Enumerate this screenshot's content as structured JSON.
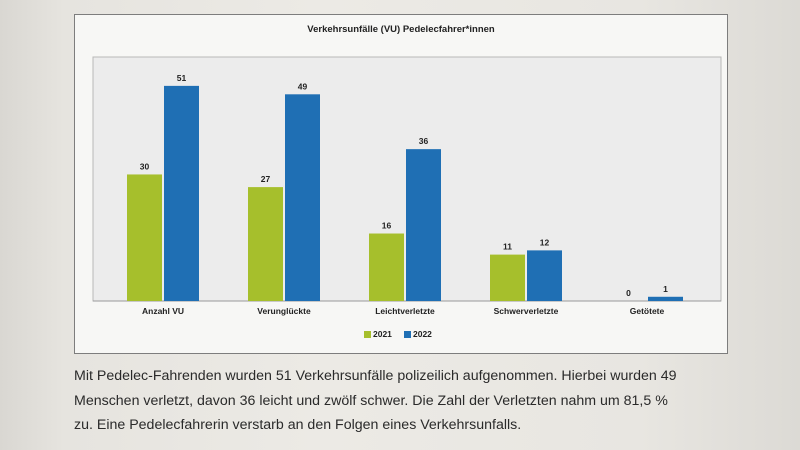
{
  "chart_data": {
    "type": "bar",
    "title": "Verkehrsunfälle (VU) Pedelecfahrer*innen",
    "xlabel": "",
    "ylabel": "",
    "categories": [
      "Anzahl VU",
      "Verunglückte",
      "Leichtverletzte",
      "Schwerverletzte",
      "Getötete"
    ],
    "series": [
      {
        "name": "2021",
        "color": "#a6bf2c",
        "values": [
          30,
          27,
          16,
          11,
          0
        ]
      },
      {
        "name": "2022",
        "color": "#1f6fb4",
        "values": [
          51,
          49,
          36,
          12,
          1
        ]
      }
    ],
    "ylim": [
      0,
      55
    ],
    "grid": false,
    "legend": "bottom-center",
    "plot_background": "#ececec"
  },
  "caption": {
    "line1": "Mit Pedelec-Fahrenden wurden 51 Verkehrsunfälle polizeilich aufgenommen. Hierbei wurden 49",
    "line2": "Menschen verletzt, davon 36 leicht und zwölf schwer. Die Zahl der Verletzten nahm um 81,5 %",
    "line3": "zu. Eine Pedelecfahrerin verstarb an den Folgen eines Verkehrsunfalls."
  }
}
